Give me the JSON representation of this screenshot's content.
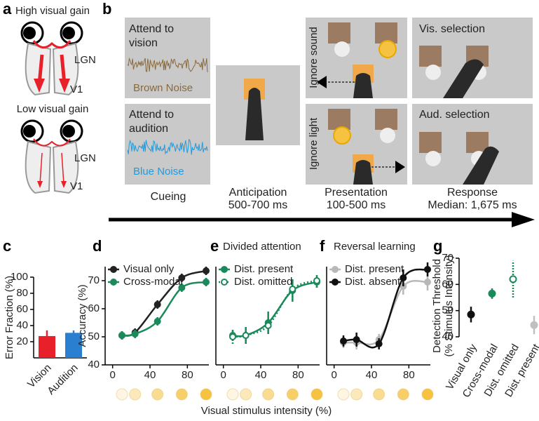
{
  "panel_labels": [
    "a",
    "b",
    "c",
    "d",
    "e",
    "f",
    "g"
  ],
  "panel_a": {
    "high_title": "High visual gain",
    "low_title": "Low visual gain",
    "lgn": "LGN",
    "v1": "V1"
  },
  "panel_b": {
    "cue_vision": [
      "Attend to",
      "vision"
    ],
    "brown_noise": "Brown Noise",
    "cue_audition": [
      "Attend to",
      "audition"
    ],
    "blue_noise": "Blue Noise",
    "ignore_sound": "Ignore sound",
    "ignore_light": "Ignore light",
    "vis_selection": "Vis. selection",
    "aud_selection": "Aud. selection",
    "stages": [
      {
        "name": "Cueing"
      },
      {
        "name": "Anticipation",
        "duration": "500-700 ms"
      },
      {
        "name": "Presentation",
        "duration": "100-500 ms"
      },
      {
        "name": "Response",
        "duration": "Median: 1,675 ms"
      }
    ]
  },
  "shared_xlabel": "Visual stimulus intensity (%)",
  "chart_data": [
    {
      "type": "bar",
      "ylabel": "Error Fraction (%)",
      "categories": [
        "Vision",
        "Audition"
      ],
      "values": [
        27,
        31
      ],
      "errors": [
        7,
        3
      ],
      "colors": [
        "#e8202a",
        "#2a7fd0"
      ],
      "ylim": [
        0,
        100
      ],
      "yticks": [
        20,
        40,
        60,
        80,
        100
      ]
    },
    {
      "type": "line",
      "ylabel": "Accuracy (%)",
      "x": [
        10,
        24,
        48,
        74,
        100
      ],
      "series": [
        {
          "name": "Visual only",
          "color": "#222222",
          "style": "solid",
          "values": [
            50.5,
            51.5,
            61.5,
            71,
            73.5
          ],
          "errors": [
            1.5,
            1.5,
            1.5,
            1.5,
            1.5
          ]
        },
        {
          "name": "Cross-modal",
          "color": "#1a8a5a",
          "style": "solid",
          "values": [
            50.5,
            51,
            55.5,
            67.5,
            69.5
          ],
          "errors": [
            1.5,
            1.5,
            1.5,
            1.5,
            1.5
          ]
        }
      ],
      "xlim": [
        -8,
        103
      ],
      "xticks": [
        0,
        40,
        80
      ],
      "ylim": [
        40,
        75
      ],
      "yticks": [
        40,
        50,
        60,
        70
      ]
    },
    {
      "type": "line",
      "title": "Divided attention",
      "x": [
        10,
        24,
        48,
        74,
        100
      ],
      "series": [
        {
          "name": "Dist. present",
          "color": "#1a8a5a",
          "style": "solid",
          "values": [
            50.5,
            50.5,
            55,
            66.5,
            69.5
          ],
          "errors": [
            2,
            3,
            4,
            4,
            2
          ]
        },
        {
          "name": "Dist. omitted",
          "color": "#1a8a5a",
          "style": "dotted",
          "values": [
            50,
            50.5,
            54,
            67,
            70
          ],
          "errors": [
            2.5,
            3,
            3,
            4,
            2.5
          ]
        }
      ],
      "xlim": [
        -8,
        103
      ],
      "xticks": [
        0,
        40,
        80
      ],
      "ylim": [
        40,
        75
      ]
    },
    {
      "type": "line",
      "title": "Reversal learning",
      "x": [
        10,
        24,
        48,
        74,
        100
      ],
      "series": [
        {
          "name": "Dist. present",
          "color": "#b8b8b8",
          "style": "solid",
          "values": [
            48,
            48,
            49,
            68,
            69.5
          ],
          "errors": [
            2,
            2.5,
            2,
            3,
            3
          ]
        },
        {
          "name": "Dist. absent",
          "color": "#111111",
          "style": "solid",
          "values": [
            48.5,
            49,
            47.5,
            71,
            74
          ],
          "errors": [
            2,
            2.5,
            2,
            3,
            2.5
          ]
        }
      ],
      "xlim": [
        -8,
        103
      ],
      "xticks": [
        0,
        40,
        80
      ],
      "ylim": [
        40,
        75
      ]
    },
    {
      "type": "dot",
      "ylabel": [
        "Detection Threshold",
        "(% Stimulus Intensity)"
      ],
      "categories": [
        "Visual only",
        "Cross-modal",
        "Dist. omitted",
        "Dist. present"
      ],
      "values": [
        48.5,
        56.5,
        62,
        44.5
      ],
      "errors": [
        3,
        2,
        7,
        3.5
      ],
      "colors": [
        "#111111",
        "#1a8a5a",
        "#1a8a5a",
        "#c0c0c0"
      ],
      "styles": [
        "filled",
        "filled",
        "open-dotted",
        "filled"
      ],
      "ylim": [
        40,
        70
      ],
      "yticks": [
        40,
        50,
        60,
        70
      ]
    }
  ]
}
